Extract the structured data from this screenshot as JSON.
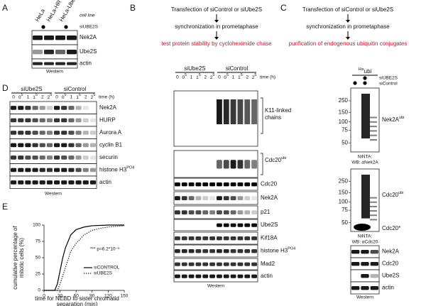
{
  "panel_a": {
    "letter": "A",
    "lanes": [
      "HeLa",
      "HeLa-HR",
      "HeLa-Ube2S"
    ],
    "row_labels": [
      "cell line",
      "siUBE2S"
    ],
    "blots": [
      "Nek2A",
      "Ube2S",
      "actin"
    ],
    "footer": "Western"
  },
  "panel_b": {
    "letter": "B",
    "steps": [
      "Transfection of siControl or siUbe2S",
      "synchronization in prometaphase",
      "test protein stability by cycloheximide chase"
    ],
    "groups": [
      "siUbe2S",
      "siControl"
    ],
    "times": [
      "0",
      {
        "text": "0",
        "sup": "5"
      },
      "1",
      {
        "text": "1",
        "sup": "5"
      },
      "2",
      {
        "text": "2",
        "sup": "5"
      }
    ],
    "time_label": "time (h)",
    "blots": [
      "K11-linked chains",
      {
        "text": "Cdc20",
        "sup": "ubi"
      },
      "Cdc20",
      "Nek2A",
      "p21",
      "Ube2S",
      "Kif18A",
      {
        "text": "histone H3",
        "sup": "PO4"
      },
      "Mad2",
      "actin"
    ],
    "footer": "Western"
  },
  "panel_c": {
    "letter": "C",
    "steps": [
      "Transfection of siControl or siUbe2S",
      "synchronization in prometaphase",
      "purification of endogenous ubiquitin conjugates"
    ],
    "header": {
      "text": "ubi",
      "sup": "His"
    },
    "conditions": [
      "siUBE2S",
      "siControl"
    ],
    "markers": [
      "250",
      "150",
      "100",
      "75",
      "50"
    ],
    "pulldowns": [
      {
        "label": {
          "text": "Nek2A",
          "sup": "ubi"
        },
        "caption": [
          "NiNTA:",
          "WB: αNek2A"
        ]
      },
      {
        "label": {
          "text": "Cdc20",
          "sup": "ubi"
        },
        "label2": "Cdc20*",
        "caption": [
          "NiNTA:",
          "WB: αCdc20"
        ]
      }
    ],
    "blots": [
      "Nek2A",
      "Cdc20",
      "Ube2S",
      "actin"
    ],
    "footer": "Western"
  },
  "panel_d": {
    "letter": "D",
    "groups": [
      "siUbe2S",
      "siControl"
    ],
    "times": [
      "0",
      {
        "text": "0",
        "sup": "5"
      },
      "1",
      {
        "text": "1",
        "sup": "5"
      },
      "2",
      {
        "text": "2",
        "sup": "5"
      }
    ],
    "time_label": "time (h)",
    "blots": [
      "Nek2A",
      "HURP",
      "Aurora A",
      "cyclin B1",
      "securin",
      {
        "text": "histone H3",
        "sup": "PO4"
      },
      "actin"
    ],
    "footer": "Western"
  },
  "panel_e": {
    "letter": "E",
    "chart": {
      "type": "line",
      "y_label": [
        "cumulative percentage of",
        "mitotic cells (%)"
      ],
      "x_label": [
        "time for NEBD to sister chromatid",
        "separation (min)"
      ],
      "xlim": [
        0,
        150
      ],
      "xticks": [
        0,
        30,
        60,
        90,
        120,
        150
      ],
      "ylim": [
        0,
        100
      ],
      "yticks": [
        0,
        25,
        50,
        75,
        100
      ],
      "annotation": "*** p=6.2*10⁻⁶",
      "series": [
        {
          "name": "siCONTROL",
          "color": "#000000",
          "dash": "solid",
          "x": [
            0,
            20,
            25,
            30,
            35,
            40,
            45,
            50,
            60,
            75,
            90,
            120,
            150
          ],
          "values": [
            0,
            0,
            10,
            30,
            50,
            65,
            75,
            85,
            93,
            97,
            99,
            100,
            100
          ]
        },
        {
          "name": "siUBE2S",
          "color": "#000000",
          "dash": "dotted",
          "x": [
            0,
            25,
            30,
            35,
            40,
            45,
            50,
            60,
            75,
            90,
            105,
            120,
            150
          ],
          "values": [
            0,
            0,
            10,
            22,
            35,
            47,
            60,
            72,
            85,
            92,
            95,
            97,
            99
          ]
        }
      ]
    }
  }
}
